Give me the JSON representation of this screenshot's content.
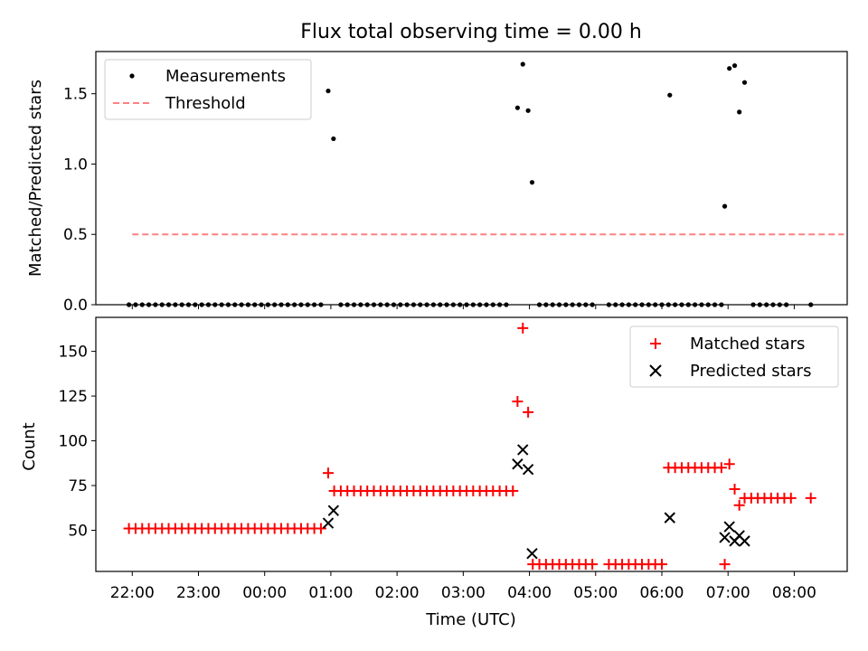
{
  "chart_data": {
    "title": "Flux total observing time = 0.00 h",
    "xlabel": "Time (UTC)",
    "x_unit": "hours since 22:00 UTC",
    "xlim": [
      -0.55,
      10.8
    ],
    "x_ticks": [
      {
        "x": 0,
        "label": "22:00"
      },
      {
        "x": 1,
        "label": "23:00"
      },
      {
        "x": 2,
        "label": "00:00"
      },
      {
        "x": 3,
        "label": "01:00"
      },
      {
        "x": 4,
        "label": "02:00"
      },
      {
        "x": 5,
        "label": "03:00"
      },
      {
        "x": 6,
        "label": "04:00"
      },
      {
        "x": 7,
        "label": "05:00"
      },
      {
        "x": 8,
        "label": "06:00"
      },
      {
        "x": 9,
        "label": "07:00"
      },
      {
        "x": 10,
        "label": "08:00"
      }
    ],
    "top": {
      "type": "scatter",
      "ylabel": "Matched/Predicted stars",
      "ylim": [
        0,
        1.8
      ],
      "y_ticks": [
        0.0,
        0.5,
        1.0,
        1.5
      ],
      "y_tick_labels": [
        "0.0",
        "0.5",
        "1.0",
        "1.5"
      ],
      "legend": {
        "position": "top-left",
        "entries": [
          "Measurements",
          "Threshold"
        ]
      },
      "threshold": {
        "name": "Threshold",
        "value": 0.5,
        "x_range": [
          0,
          10.75
        ],
        "color": "#ff8080"
      },
      "measurements": {
        "name": "Measurements",
        "color": "#000000",
        "zero_segments": [
          [
            -0.05,
            2.9,
            0.1
          ],
          [
            3.15,
            5.7,
            0.1
          ],
          [
            6.15,
            6.95,
            0.1
          ],
          [
            7.2,
            8.1,
            0.1
          ],
          [
            8.2,
            8.9,
            0.1
          ],
          [
            9.38,
            9.95,
            0.1
          ]
        ],
        "extra_zero_points": [
          10.25
        ],
        "nonzero_points": [
          [
            2.96,
            1.52
          ],
          [
            3.04,
            1.18
          ],
          [
            5.82,
            1.4
          ],
          [
            5.9,
            1.71
          ],
          [
            5.98,
            1.38
          ],
          [
            6.04,
            0.87
          ],
          [
            8.12,
            1.49
          ],
          [
            8.95,
            0.7
          ],
          [
            9.02,
            1.68
          ],
          [
            9.1,
            1.7
          ],
          [
            9.17,
            1.37
          ],
          [
            9.25,
            1.58
          ]
        ]
      }
    },
    "bottom": {
      "type": "scatter",
      "ylabel": "Count",
      "ylim": [
        27,
        169
      ],
      "y_ticks": [
        50,
        75,
        100,
        125,
        150
      ],
      "y_tick_labels": [
        "50",
        "75",
        "100",
        "125",
        "150"
      ],
      "legend": {
        "position": "top-right",
        "entries": [
          "Matched stars",
          "Predicted stars"
        ]
      },
      "matched": {
        "name": "Matched stars",
        "color": "#ff0000",
        "marker": "+",
        "segments": [
          [
            -0.05,
            2.9,
            0.1,
            51
          ],
          [
            3.05,
            5.75,
            0.1,
            72
          ],
          [
            6.05,
            6.95,
            0.1,
            31
          ],
          [
            7.2,
            8.0,
            0.1,
            31
          ],
          [
            8.1,
            8.9,
            0.1,
            85
          ],
          [
            9.35,
            9.95,
            0.1,
            68
          ]
        ],
        "points": [
          [
            2.96,
            82
          ],
          [
            5.82,
            122
          ],
          [
            5.9,
            163
          ],
          [
            5.98,
            116
          ],
          [
            8.95,
            31
          ],
          [
            9.02,
            87
          ],
          [
            9.1,
            73
          ],
          [
            9.17,
            64
          ],
          [
            9.25,
            68
          ],
          [
            10.25,
            68
          ]
        ]
      },
      "predicted": {
        "name": "Predicted stars",
        "color": "#000000",
        "marker": "x",
        "points": [
          [
            2.96,
            54
          ],
          [
            3.04,
            61
          ],
          [
            5.82,
            87
          ],
          [
            5.9,
            95
          ],
          [
            5.98,
            84
          ],
          [
            6.04,
            37
          ],
          [
            8.12,
            57
          ],
          [
            8.95,
            46
          ],
          [
            9.02,
            52
          ],
          [
            9.1,
            44
          ],
          [
            9.17,
            47
          ],
          [
            9.25,
            44
          ]
        ]
      }
    }
  }
}
